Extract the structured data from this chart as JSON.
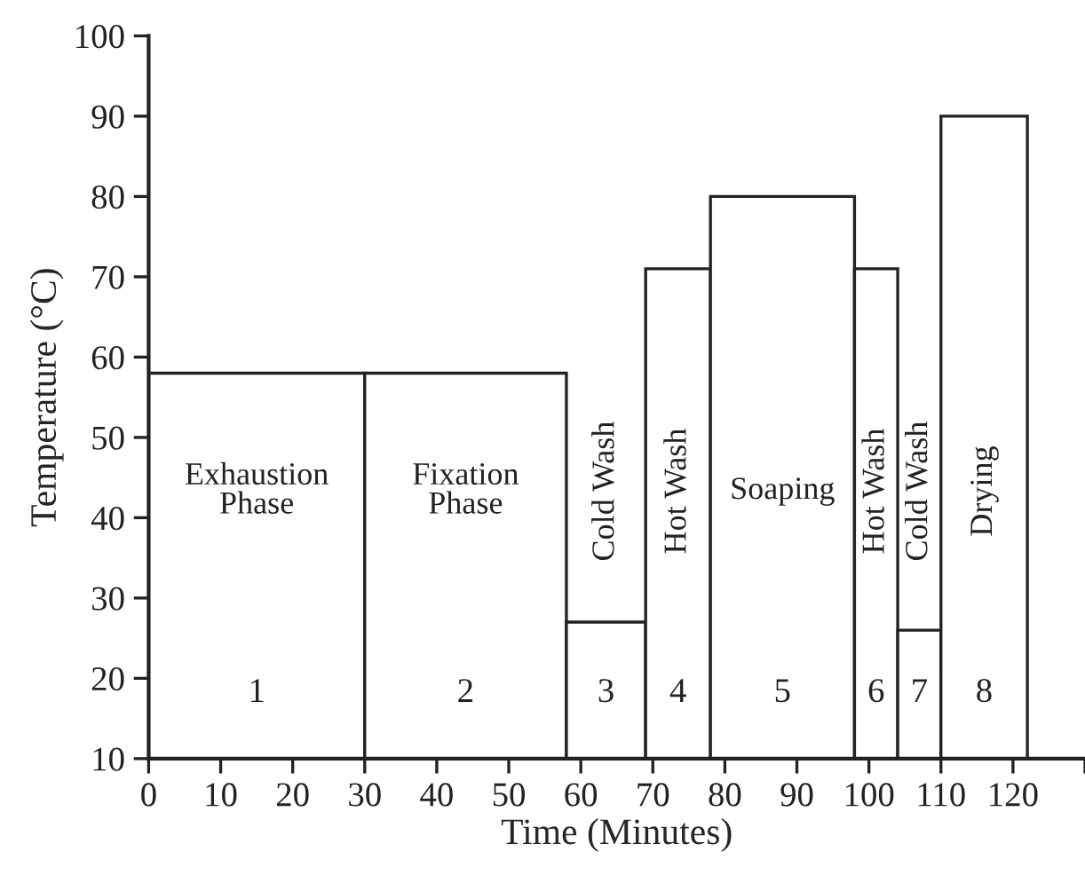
{
  "chart_data": {
    "type": "histogram",
    "xlabel": "Time (Minutes)",
    "ylabel": "Temperature (°C)",
    "bins": [
      0,
      30,
      58,
      69,
      78,
      98,
      104,
      110,
      122
    ],
    "values": [
      58,
      58,
      27,
      71,
      80,
      71,
      26,
      90
    ],
    "color": "#ffffff",
    "xlim": [
      0,
      130
    ],
    "xticks": [
      0,
      10,
      20,
      30,
      40,
      50,
      60,
      70,
      80,
      90,
      100,
      110,
      120,
      {
        "value": 130,
        "label": null
      }
    ],
    "ylim": [
      10,
      100
    ],
    "yticks": [
      10,
      20,
      30,
      40,
      50,
      60,
      70,
      80,
      90,
      100
    ],
    "grid": false,
    "annotations": [
      "Exhaustion\nPhase",
      "Fixation\nPhase",
      "Cold Wash",
      "Hot Wash",
      "Soaping",
      "Hot Wash",
      "Cold Wash",
      "Drying",
      "1",
      "2",
      "3",
      "4",
      "5",
      "6",
      "7",
      "8"
    ]
  }
}
